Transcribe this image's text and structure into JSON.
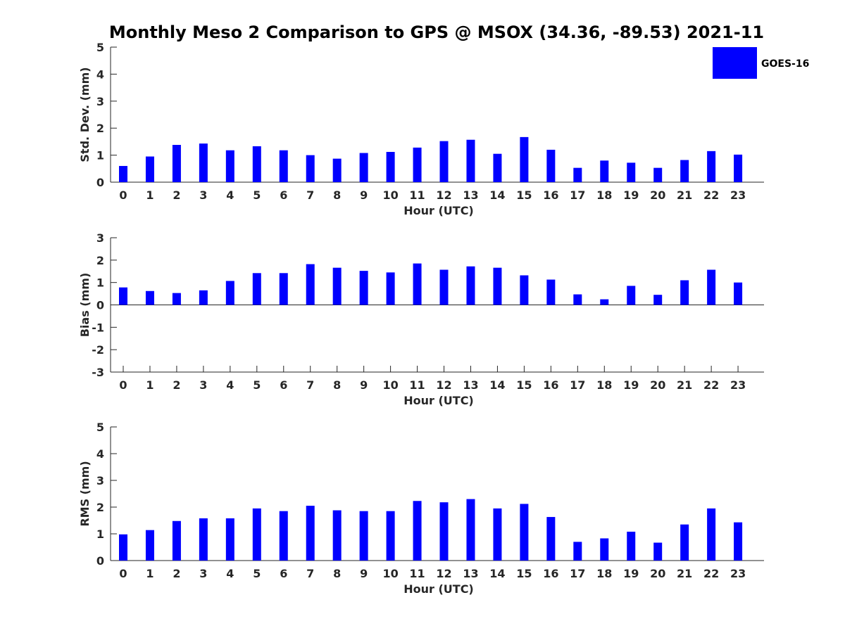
{
  "title": "Monthly Meso 2 Comparison to GPS @ MSOX (34.36, -89.53) 2021-11",
  "legend": {
    "label": "GOES-16",
    "color": "#0000ff",
    "placement": "top-right"
  },
  "chart_data": [
    {
      "type": "bar",
      "xlabel": "Hour (UTC)",
      "ylabel": "Std. Dev. (mm)",
      "ylim": [
        0,
        5
      ],
      "yticks": [
        "0",
        "1",
        "2",
        "3",
        "4",
        "5"
      ],
      "categories": [
        "0",
        "1",
        "2",
        "3",
        "4",
        "5",
        "6",
        "7",
        "8",
        "9",
        "10",
        "11",
        "12",
        "13",
        "14",
        "15",
        "16",
        "17",
        "18",
        "19",
        "20",
        "21",
        "22",
        "23"
      ],
      "series": [
        {
          "name": "GOES-16",
          "color": "#0000ff",
          "values": [
            0.6,
            0.95,
            1.38,
            1.43,
            1.18,
            1.33,
            1.18,
            1.0,
            0.87,
            1.08,
            1.12,
            1.28,
            1.52,
            1.57,
            1.05,
            1.67,
            1.2,
            0.53,
            0.8,
            0.72,
            0.53,
            0.82,
            1.15,
            1.02
          ]
        }
      ]
    },
    {
      "type": "bar",
      "xlabel": "Hour (UTC)",
      "ylabel": "Bias (mm)",
      "ylim": [
        -3,
        3
      ],
      "yticks": [
        "-3",
        "-2",
        "-1",
        "0",
        "1",
        "2",
        "3"
      ],
      "categories": [
        "0",
        "1",
        "2",
        "3",
        "4",
        "5",
        "6",
        "7",
        "8",
        "9",
        "10",
        "11",
        "12",
        "13",
        "14",
        "15",
        "16",
        "17",
        "18",
        "19",
        "20",
        "21",
        "22",
        "23"
      ],
      "series": [
        {
          "name": "GOES-16",
          "color": "#0000ff",
          "values": [
            0.78,
            0.62,
            0.53,
            0.65,
            1.07,
            1.42,
            1.42,
            1.82,
            1.66,
            1.52,
            1.45,
            1.85,
            1.57,
            1.72,
            1.66,
            1.32,
            1.13,
            0.47,
            0.25,
            0.85,
            0.45,
            1.1,
            1.57,
            1.0
          ]
        }
      ]
    },
    {
      "type": "bar",
      "xlabel": "Hour (UTC)",
      "ylabel": "RMS (mm)",
      "ylim": [
        0,
        5
      ],
      "yticks": [
        "0",
        "1",
        "2",
        "3",
        "4",
        "5"
      ],
      "categories": [
        "0",
        "1",
        "2",
        "3",
        "4",
        "5",
        "6",
        "7",
        "8",
        "9",
        "10",
        "11",
        "12",
        "13",
        "14",
        "15",
        "16",
        "17",
        "18",
        "19",
        "20",
        "21",
        "22",
        "23"
      ],
      "series": [
        {
          "name": "GOES-16",
          "color": "#0000ff",
          "values": [
            0.98,
            1.14,
            1.48,
            1.58,
            1.58,
            1.95,
            1.85,
            2.05,
            1.88,
            1.85,
            1.85,
            2.23,
            2.18,
            2.3,
            1.95,
            2.12,
            1.63,
            0.7,
            0.83,
            1.08,
            0.67,
            1.35,
            1.95,
            1.43
          ]
        }
      ]
    }
  ]
}
